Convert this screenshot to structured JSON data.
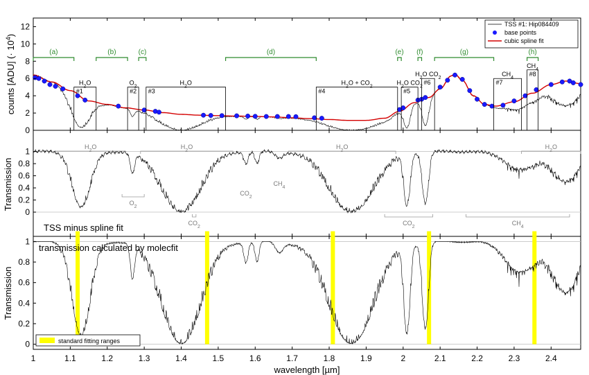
{
  "chart_data": {
    "type": "line",
    "x_axis": {
      "label": "wavelength [µm]",
      "xlim": [
        1.0,
        2.48
      ],
      "ticks": [
        1,
        1.1,
        1.2,
        1.3,
        1.4,
        1.5,
        1.6,
        1.7,
        1.8,
        1.9,
        2,
        2.1,
        2.2,
        2.3,
        2.4
      ],
      "tick_labels": [
        "1",
        "1.1",
        "1.2",
        "1.3",
        "1.4",
        "1.5",
        "1.6",
        "1.7",
        "1.8",
        "1.9",
        "2",
        "2.1",
        "2.2",
        "2.3",
        "2.4"
      ]
    },
    "panels": [
      {
        "id": "counts",
        "ylabel": "counts [ADU] (· 10",
        "ylabel_exp": "4",
        "ylabel_close": ")",
        "ylim": [
          0,
          13
        ],
        "yticks": [
          0,
          2,
          4,
          6,
          8,
          10,
          12
        ],
        "legend": {
          "placement": "top-right",
          "entries": [
            {
              "label": "TSS #1: Hip084409",
              "style": "line",
              "color": "#000000"
            },
            {
              "label": "base points",
              "style": "marker",
              "color": "#1a1aff"
            },
            {
              "label": "cubic spline fit",
              "style": "line",
              "color": "#d40000"
            }
          ]
        },
        "spline_points": [
          [
            1.0,
            6.4
          ],
          [
            1.05,
            5.6
          ],
          [
            1.1,
            4.6
          ],
          [
            1.15,
            3.4
          ],
          [
            1.2,
            3.0
          ],
          [
            1.25,
            2.6
          ],
          [
            1.3,
            2.35
          ],
          [
            1.35,
            2.05
          ],
          [
            1.4,
            1.85
          ],
          [
            1.45,
            1.75
          ],
          [
            1.5,
            1.7
          ],
          [
            1.55,
            1.65
          ],
          [
            1.6,
            1.6
          ],
          [
            1.65,
            1.55
          ],
          [
            1.7,
            1.45
          ],
          [
            1.75,
            1.35
          ],
          [
            1.8,
            1.25
          ],
          [
            1.85,
            1.15
          ],
          [
            1.9,
            1.15
          ],
          [
            1.95,
            1.4
          ],
          [
            1.99,
            2.2
          ],
          [
            2.03,
            3.2
          ],
          [
            2.07,
            3.8
          ],
          [
            2.1,
            4.8
          ],
          [
            2.13,
            6.3
          ],
          [
            2.14,
            6.5
          ],
          [
            2.16,
            5.8
          ],
          [
            2.19,
            4.0
          ],
          [
            2.22,
            3.0
          ],
          [
            2.25,
            2.8
          ],
          [
            2.3,
            3.3
          ],
          [
            2.35,
            4.3
          ],
          [
            2.4,
            5.3
          ],
          [
            2.44,
            5.7
          ],
          [
            2.48,
            5.4
          ]
        ],
        "base_points": [
          [
            1.005,
            6.1
          ],
          [
            1.015,
            6.0
          ],
          [
            1.03,
            5.7
          ],
          [
            1.045,
            5.3
          ],
          [
            1.06,
            5.1
          ],
          [
            1.08,
            4.8
          ],
          [
            1.12,
            4.0
          ],
          [
            1.14,
            3.5
          ],
          [
            1.23,
            2.8
          ],
          [
            1.3,
            2.35
          ],
          [
            1.33,
            2.2
          ],
          [
            1.34,
            2.1
          ],
          [
            1.46,
            1.75
          ],
          [
            1.48,
            1.72
          ],
          [
            1.51,
            1.7
          ],
          [
            1.55,
            1.68
          ],
          [
            1.58,
            1.65
          ],
          [
            1.6,
            1.62
          ],
          [
            1.63,
            1.6
          ],
          [
            1.66,
            1.6
          ],
          [
            1.69,
            1.6
          ],
          [
            1.71,
            1.58
          ],
          [
            1.76,
            1.45
          ],
          [
            1.78,
            1.4
          ],
          [
            1.99,
            2.4
          ],
          [
            2.0,
            2.6
          ],
          [
            2.04,
            3.5
          ],
          [
            2.05,
            3.6
          ],
          [
            2.06,
            3.8
          ],
          [
            2.1,
            5.0
          ],
          [
            2.12,
            5.8
          ],
          [
            2.14,
            6.4
          ],
          [
            2.16,
            5.9
          ],
          [
            2.18,
            4.6
          ],
          [
            2.2,
            3.6
          ],
          [
            2.22,
            3.0
          ],
          [
            2.24,
            2.8
          ],
          [
            2.27,
            2.9
          ],
          [
            2.3,
            3.4
          ],
          [
            2.33,
            4.0
          ],
          [
            2.36,
            4.7
          ],
          [
            2.4,
            5.3
          ],
          [
            2.43,
            5.6
          ],
          [
            2.45,
            5.7
          ],
          [
            2.46,
            5.5
          ],
          [
            2.48,
            5.3
          ]
        ],
        "brackets": [
          {
            "label": "(a)",
            "x0": 1.0,
            "x1": 1.11
          },
          {
            "label": "(b)",
            "x0": 1.17,
            "x1": 1.255
          },
          {
            "label": "(c)",
            "x0": 1.285,
            "x1": 1.305
          },
          {
            "label": "(d)",
            "x0": 1.52,
            "x1": 1.765
          },
          {
            "label": "(e)",
            "x0": 1.985,
            "x1": 1.995
          },
          {
            "label": "(f)",
            "x0": 2.04,
            "x1": 2.05
          },
          {
            "label": "(g)",
            "x0": 2.085,
            "x1": 2.245
          },
          {
            "label": "(h)",
            "x0": 2.335,
            "x1": 2.365
          }
        ],
        "boxes": [
          {
            "id": "#1",
            "x0": 1.11,
            "x1": 1.17,
            "top": 5.0,
            "label": "H2O"
          },
          {
            "id": "#2",
            "x0": 1.255,
            "x1": 1.285,
            "top": 5.0,
            "label": "O2"
          },
          {
            "id": "#3",
            "x0": 1.305,
            "x1": 1.52,
            "top": 5.0,
            "label": "H2O"
          },
          {
            "id": "#4",
            "x0": 1.765,
            "x1": 1.985,
            "top": 5.0,
            "label": "H2O + CO2"
          },
          {
            "id": "#5",
            "x0": 1.995,
            "x1": 2.04,
            "top": 5.0,
            "label": "H2O CO2"
          },
          {
            "id": "#6",
            "x0": 2.05,
            "x1": 2.085,
            "top": 6.0,
            "label": "H2O CO2"
          },
          {
            "id": "#7",
            "x0": 2.245,
            "x1": 2.32,
            "top": 6.0,
            "label": "CH4"
          },
          {
            "id": "#8",
            "x0": 2.335,
            "x1": 2.365,
            "top": 7.0,
            "label": "CH4"
          }
        ]
      },
      {
        "id": "residual",
        "ylabel": "Transmission",
        "panel_title": "TSS minus spline fit",
        "yticks": [
          0,
          0.2,
          0.4,
          0.6,
          0.8,
          1
        ],
        "ylim": [
          -0.4,
          1.35
        ],
        "annotations_top": [
          {
            "label": "H2O",
            "x0": 1.06,
            "x1": 1.25
          },
          {
            "label": "H2O",
            "x0": 1.29,
            "x1": 1.54
          },
          {
            "label": "H2O",
            "x0": 1.69,
            "x1": 1.98
          },
          {
            "label": "H2O",
            "x0": 2.32,
            "x1": 2.48
          }
        ],
        "annotations_bottom": [
          {
            "label": "O2",
            "x0": 1.24,
            "x1": 1.3
          },
          {
            "label": "CO2",
            "x0": 1.43,
            "x1": 1.44
          },
          {
            "label": "CO2",
            "x0": 1.95,
            "x1": 2.08
          },
          {
            "label": "CH4",
            "x0": 2.17,
            "x1": 2.45
          }
        ],
        "annotations_mid": [
          {
            "label": "CO2",
            "x": 1.575
          },
          {
            "label": "CH4",
            "x": 1.665
          }
        ]
      },
      {
        "id": "molecfit",
        "ylabel": "Transmission",
        "panel_title": "transmission calculated by molecfit",
        "yticks": [
          0,
          0.2,
          0.4,
          0.6,
          0.8,
          1
        ],
        "ylim": [
          -0.05,
          1.05
        ],
        "legend": {
          "placement": "bottom-left",
          "entries": [
            {
              "label": "standard fitting ranges",
              "color": "#ffff00"
            }
          ]
        },
        "fitting_ranges": [
          1.12,
          1.47,
          1.81,
          2.07,
          2.355
        ]
      }
    ],
    "absorption_bands": [
      {
        "center": 1.13,
        "width": 0.035,
        "depth": 0.92
      },
      {
        "center": 1.268,
        "width": 0.008,
        "depth": 0.35
      },
      {
        "center": 1.4,
        "width": 0.075,
        "depth": 1.0
      },
      {
        "center": 1.86,
        "width": 0.085,
        "depth": 1.0
      },
      {
        "center": 2.01,
        "width": 0.012,
        "depth": 0.9
      },
      {
        "center": 2.06,
        "width": 0.012,
        "depth": 0.85
      },
      {
        "center": 1.575,
        "width": 0.008,
        "depth": 0.2
      },
      {
        "center": 1.605,
        "width": 0.008,
        "depth": 0.2
      },
      {
        "center": 1.665,
        "width": 0.015,
        "depth": 0.1
      },
      {
        "center": 2.32,
        "width": 0.06,
        "depth": 0.3
      },
      {
        "center": 2.44,
        "width": 0.05,
        "depth": 0.5
      }
    ]
  }
}
